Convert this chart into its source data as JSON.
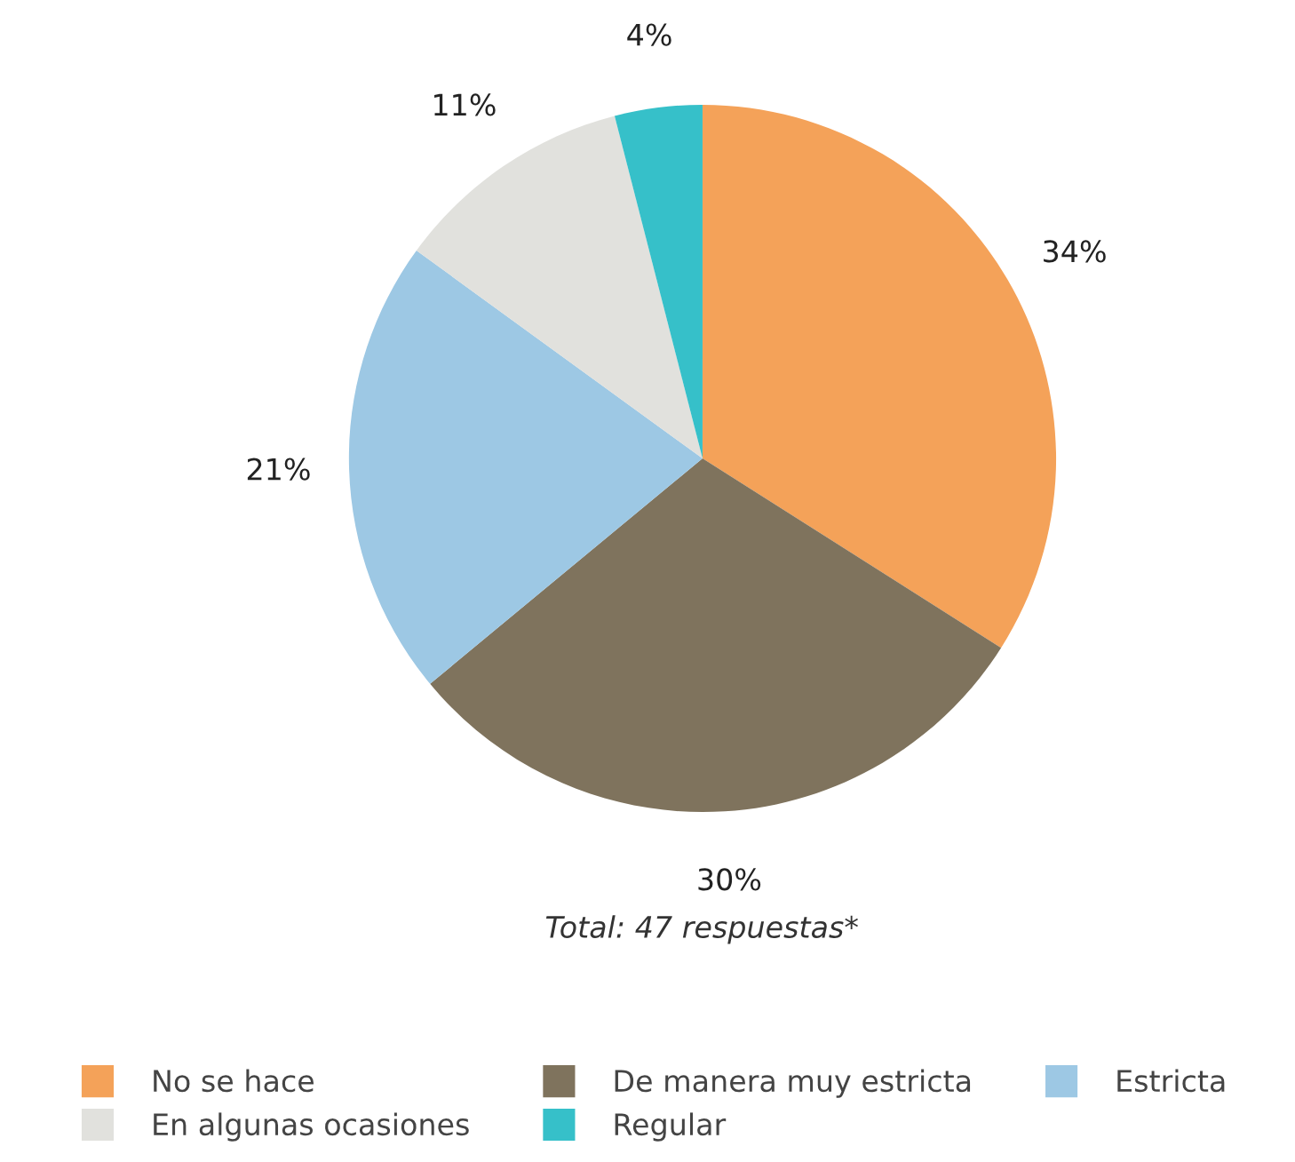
{
  "chart_data": {
    "type": "pie",
    "categories": [
      "No se hace",
      "De manera muy estricta",
      "Estricta",
      "En algunas ocasiones",
      "Regular"
    ],
    "values": [
      34,
      30,
      21,
      11,
      4
    ],
    "value_labels": [
      "34%",
      "30%",
      "21%",
      "11%",
      "4%"
    ],
    "colors": [
      "#f4a259",
      "#7f735d",
      "#9dc8e4",
      "#e1e1dd",
      "#36c0c9"
    ],
    "annotations": [
      "Total: 47 respuestas*"
    ],
    "legend": "bottom"
  }
}
